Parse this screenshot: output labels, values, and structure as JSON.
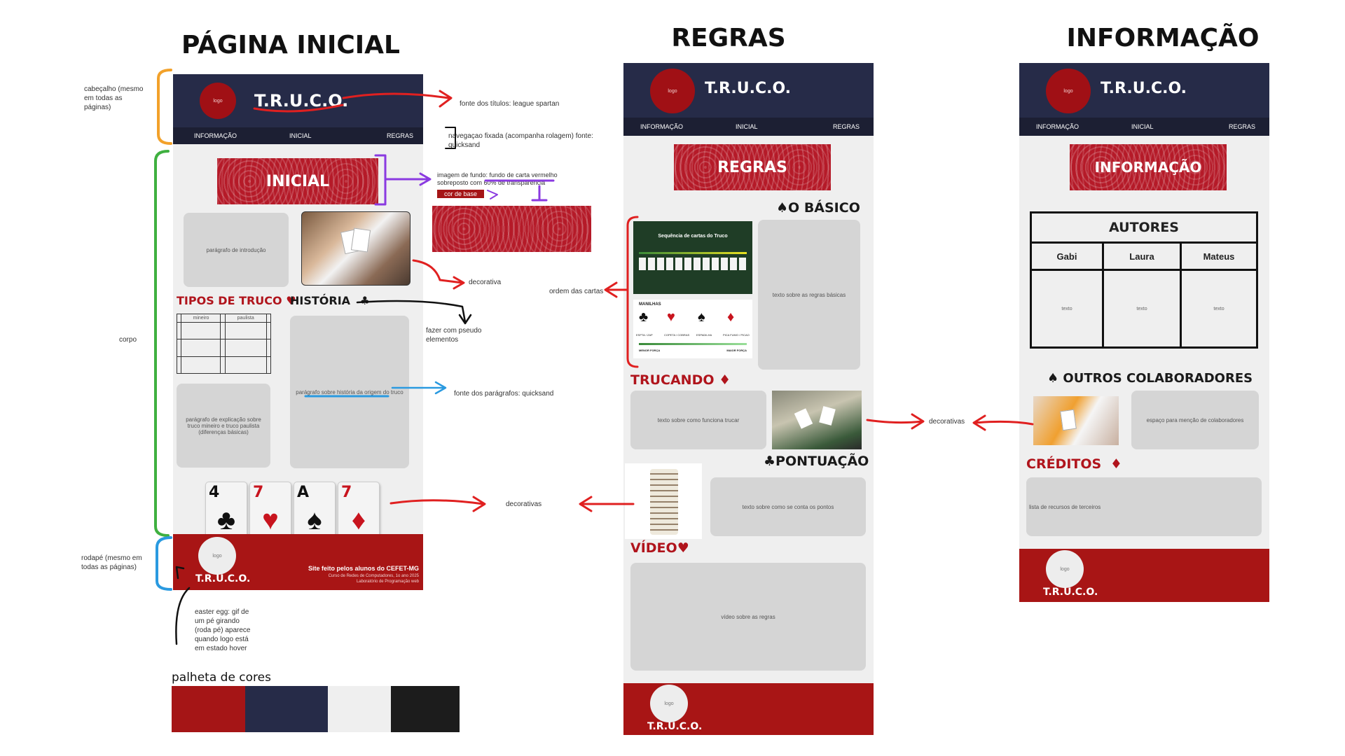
{
  "titles": {
    "home": "PÁGINA INICIAL",
    "rules": "REGRAS",
    "info": "INFORMAÇÃO"
  },
  "brand": "T.R.U.C.O.",
  "logo": "logo",
  "nav": {
    "info": "INFORMAÇÃO",
    "home": "INICIAL",
    "rules": "REGRAS"
  },
  "home": {
    "banner": "INICIAL",
    "intro": "parágrafo de introdução",
    "tipos": "TIPOS DE TRUCO",
    "historia": "HISTÓRIA",
    "table_headers": [
      "mineiro",
      "paulista"
    ],
    "explain": "parágrafo de explicação sobre truco mineiro e truco paulista (diferenças básicas)",
    "history_par": "parágrafo sobre história da origem do truco",
    "cards": [
      {
        "rank": "4",
        "suit": "♣",
        "color": "#111111"
      },
      {
        "rank": "7",
        "suit": "♥",
        "color": "#c8141e"
      },
      {
        "rank": "A",
        "suit": "♠",
        "color": "#111111"
      },
      {
        "rank": "7",
        "suit": "♦",
        "color": "#c8141e"
      }
    ],
    "footer_line1": "Site feito pelos alunos do CEFET-MG",
    "footer_line2": "Curso de Redes de Computadores, 1o ano 2025",
    "footer_line3": "Laboratório de Programação web"
  },
  "rules": {
    "banner": "REGRAS",
    "basico": "O BÁSICO",
    "seq_title": "Sequência de cartas do Truco",
    "manilhas": "MANILHAS",
    "manilha_labels": [
      "ESPTA / ZAP",
      "COPETA / COBRAS",
      "ESPADILHA",
      "PICA FUMO / PICAO"
    ],
    "menor_forca": "MENOR FORÇA",
    "maior_forca": "MAIOR FORÇA",
    "basic_text": "texto sobre as regras básicas",
    "trucando": "TRUCANDO",
    "trucar_text": "texto sobre como funciona trucar",
    "pontuacao": "PONTUAÇÃO",
    "points_text": "texto sobre como se conta os pontos",
    "video": "VÍDEO",
    "video_text": "vídeo sobre as regras"
  },
  "info": {
    "banner": "INFORMAÇÃO",
    "autores": "AUTORES",
    "authors": [
      "Gabi",
      "Laura",
      "Mateus"
    ],
    "author_text": "texto",
    "outros": "OUTROS COLABORADORES",
    "collab_text": "espaço para menção de colaboradores",
    "creditos": "CRÉDITOS",
    "credits_text": "lista de recursos de terceiros"
  },
  "annotations": {
    "header": "cabeçalho (mesmo em todas as páginas)",
    "font_titles": "fonte dos títulos: league spartan",
    "nav_fixed": "navegaçao fixada (acompanha rolagem) fonte: quicksand",
    "bg_image_a": "imagem de fundo: fundo de carta vermelho",
    "bg_image_b": "sobreposto com 60% de transparência",
    "base_color": "cor de base",
    "decorativa": "decorativa",
    "ordem": "ordem das cartas",
    "corpo": "corpo",
    "pseudo": "fazer com pseudo elementos",
    "font_par": "fonte dos parágrafos: quicksand",
    "decorativas": "decorativas",
    "footer": "rodapé (mesmo em todas as páginas)",
    "easter": "easter egg: gif de um pé girando (roda pé) aparece quando logo está em estado hover"
  },
  "palette": {
    "label": "palheta de cores",
    "colors": [
      "#a51516",
      "#262b48",
      "#efefef",
      "#1c1c1c"
    ]
  }
}
